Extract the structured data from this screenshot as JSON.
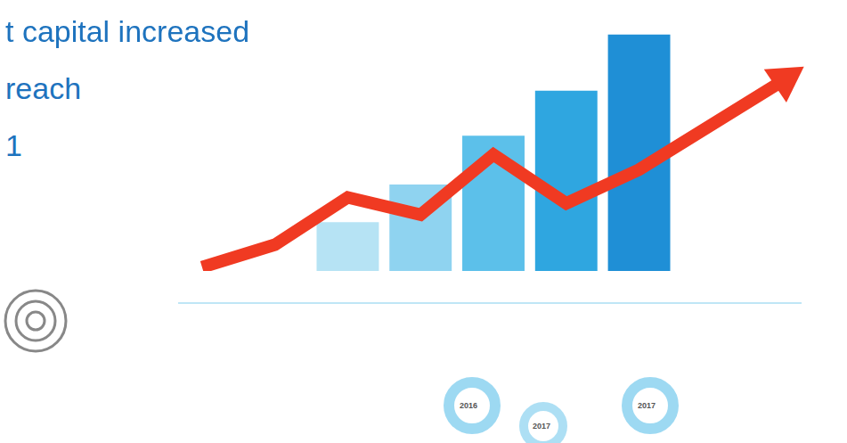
{
  "chart_data": {
    "type": "bar",
    "annotations": [
      "t capital increased",
      "reach",
      "1",
      "2016",
      "2017",
      "2017"
    ],
    "categories": [
      null,
      null,
      null,
      null,
      null,
      null,
      null,
      null,
      null
    ],
    "series": [
      {
        "type": "bar",
        "values": [
          null,
          null,
          65,
          115,
          180,
          240,
          315,
          null,
          null
        ],
        "colors": [
          "#b6e3f4",
          "#8fd3f0",
          "#5cc0ea",
          "#2fa6e0",
          "#1f8fd6"
        ]
      },
      {
        "type": "line",
        "color": "#f03a22",
        "marker": "arrow",
        "values": [
          5,
          35,
          98,
          75,
          155,
          90,
          135,
          195,
          255
        ]
      }
    ],
    "ylim": [
      0,
      330
    ],
    "grid": false,
    "tick_labels": false
  }
}
